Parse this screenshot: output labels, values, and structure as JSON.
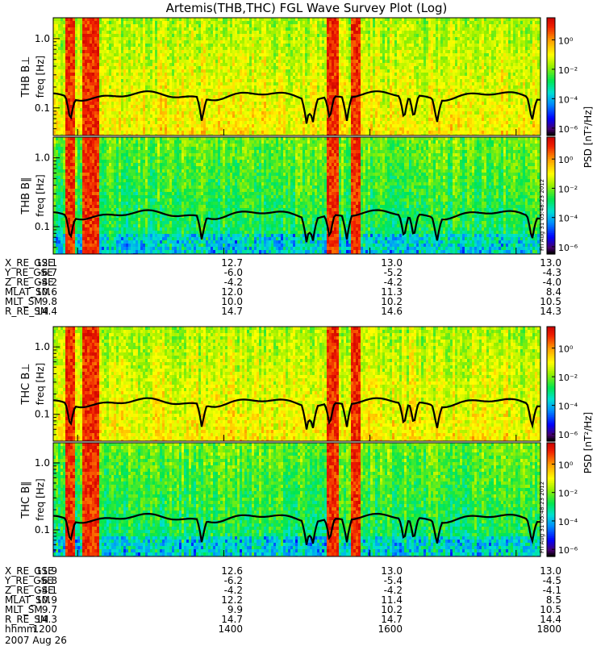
{
  "chart_data": {
    "type": "heatmap",
    "title": "Artemis(THB,THC) FGL Wave Survey Plot (Log)",
    "time_range": [
      1140,
      1820
    ],
    "x_tick_values": [
      1200,
      1400,
      1600,
      1800
    ],
    "ylim": [
      0.04,
      2.0
    ],
    "y_scale": "log",
    "y_ticks": [
      0.1,
      1.0
    ],
    "y_tick_labels": [
      "0.1",
      "1.0"
    ],
    "colorbar": {
      "label": "PSD [nT²/Hz]",
      "range": [
        -6.5,
        1.5
      ],
      "ticks": [
        "10⁰",
        "10⁻²",
        "10⁻⁴",
        "10⁻⁶"
      ],
      "tick_exponents": [
        0,
        -2,
        -4,
        -6
      ]
    },
    "panels": [
      {
        "ylabel": "THB B⊥",
        "yunit": "freq [Hz]",
        "component": "perp",
        "probe": "B"
      },
      {
        "ylabel": "THB B∥",
        "yunit": "freq [Hz]",
        "component": "par",
        "probe": "B",
        "stamp": "Fri Aug 31 05:48:23 2012"
      },
      {
        "ylabel": "THC B⊥",
        "yunit": "freq [Hz]",
        "component": "perp",
        "probe": "C"
      },
      {
        "ylabel": "THC B∥",
        "yunit": "freq [Hz]",
        "component": "par",
        "probe": "C",
        "stamp": "Fri Aug 31 05:48:23 2012"
      }
    ],
    "gyro_line_dips_hhmm": [
      1154,
      1342,
      1508,
      1513,
      1527,
      1541,
      1628,
      1636,
      1655,
      1813
    ],
    "gyro_line_base_hz": 0.15,
    "active_intervals_hhmm": [
      [
        1150,
        1156
      ],
      [
        1204,
        1215
      ],
      [
        1525,
        1532
      ],
      [
        1545,
        1550
      ]
    ]
  },
  "ephemeris_thb": [
    {
      "label": "X_RE_GSE",
      "values": [
        "12.1",
        "12.7",
        "13.0",
        "13.0"
      ]
    },
    {
      "label": "Y_RE_GSE",
      "values": [
        "-6.7",
        "-6.0",
        "-5.2",
        "-4.3"
      ]
    },
    {
      "label": "Z_RE_GSE",
      "values": [
        "-4.2",
        "-4.2",
        "-4.2",
        "-4.0"
      ]
    },
    {
      "label": "MLAT_SM",
      "values": [
        "10.6",
        "12.0",
        "11.3",
        "8.4"
      ]
    },
    {
      "label": "MLT_SM",
      "values": [
        "9.8",
        "10.0",
        "10.2",
        "10.5"
      ]
    },
    {
      "label": "R_RE_SM",
      "values": [
        "14.4",
        "14.7",
        "14.6",
        "14.3"
      ]
    }
  ],
  "ephemeris_thc": [
    {
      "label": "X_RE_GSE",
      "values": [
        "11.9",
        "12.6",
        "13.0",
        "13.0"
      ]
    },
    {
      "label": "Y_RE_GSE",
      "values": [
        "-6.8",
        "-6.2",
        "-5.4",
        "-4.5"
      ]
    },
    {
      "label": "Z_RE_GSE",
      "values": [
        "-4.1",
        "-4.2",
        "-4.2",
        "-4.1"
      ]
    },
    {
      "label": "MLAT_SM",
      "values": [
        "10.9",
        "12.2",
        "11.4",
        "8.5"
      ]
    },
    {
      "label": "MLT_SM",
      "values": [
        "9.7",
        "9.9",
        "10.2",
        "10.5"
      ]
    },
    {
      "label": "R_RE_SM",
      "values": [
        "14.3",
        "14.7",
        "14.7",
        "14.4"
      ]
    },
    {
      "label": "hhmm",
      "values": [
        "1200",
        "1400",
        "1600",
        "1800"
      ]
    }
  ],
  "date_label": "2007 Aug 26"
}
